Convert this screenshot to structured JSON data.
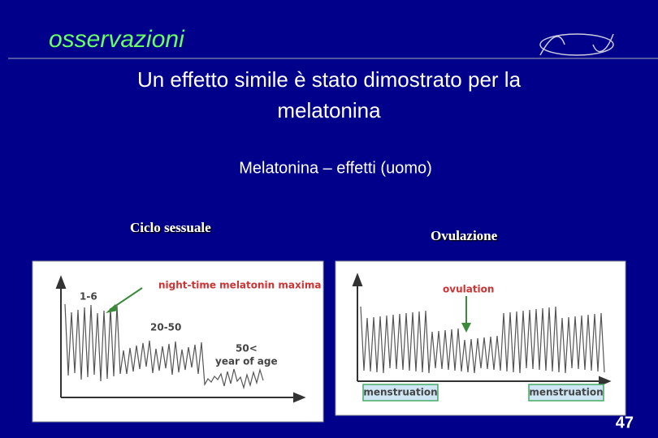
{
  "header": {
    "title": "osservazioni"
  },
  "subtitle": "Un effetto simile è stato dimostrato per la melatonina",
  "section": "Melatonina – effetti (uomo)",
  "panels": [
    {
      "caption": "Ciclo sessuale",
      "labels": [
        "1-6",
        "night-time melatonin maxima",
        "20-50",
        "50<",
        "year of age"
      ]
    },
    {
      "caption": "Ovulazione",
      "labels": [
        "ovulation",
        "menstruation",
        "menstruation"
      ]
    }
  ],
  "page_number": "47"
}
